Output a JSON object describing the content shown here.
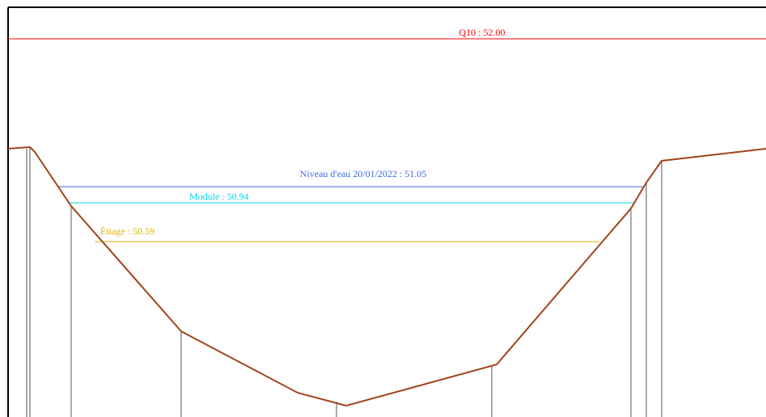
{
  "levels": {
    "q10": {
      "label": "Q10 : 52.00",
      "color": "#ff0000"
    },
    "niveau": {
      "label": "Niveau d'eau 20/01/2022 : 51.05",
      "color": "#4169e1"
    },
    "module": {
      "label": "Module : 50.94",
      "color": "#00d7e6"
    },
    "etiage": {
      "label": "Étiage : 50.59",
      "color": "#e0b000"
    }
  },
  "profile": {
    "color": "#a0441c",
    "vertical_line_color": "#555555"
  }
}
